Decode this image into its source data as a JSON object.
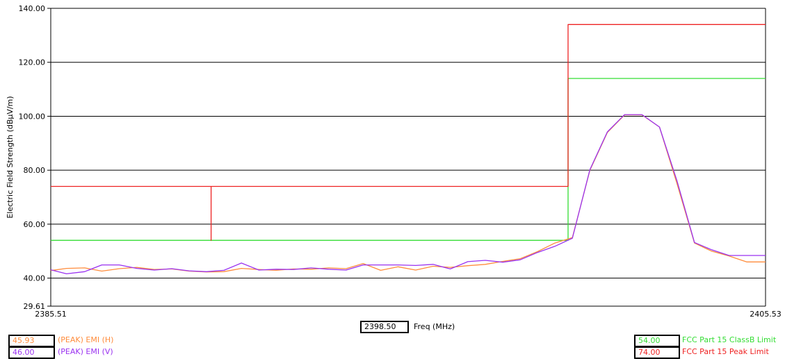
{
  "chart_data": {
    "type": "line",
    "xlabel": "Freq (MHz)",
    "ylabel": "Electric Field Strength (dBµV/m)",
    "xlim": [
      2385.51,
      2405.53
    ],
    "ylim": [
      29.61,
      140.0
    ],
    "x_tick_labels": [
      "2385.51",
      "2405.53"
    ],
    "y_ticks": [
      {
        "value": 140.0,
        "label": "140.00"
      },
      {
        "value": 120.0,
        "label": "120.00"
      },
      {
        "value": 100.0,
        "label": "100.00"
      },
      {
        "value": 80.0,
        "label": "80.00"
      },
      {
        "value": 60.0,
        "label": "60.00"
      },
      {
        "value": 40.0,
        "label": "40.00"
      },
      {
        "value": 29.61,
        "label": "29.61"
      }
    ],
    "gridlines_y": [
      140,
      120,
      100,
      80,
      60,
      40
    ],
    "grid": true,
    "series": [
      {
        "name": "(PEAK) EMI (H)",
        "color": "#ff8c3c",
        "x": [
          2385.51,
          2385.95,
          2386.46,
          2386.94,
          2387.43,
          2387.92,
          2388.41,
          2388.9,
          2389.38,
          2389.87,
          2390.36,
          2390.85,
          2391.34,
          2391.82,
          2392.31,
          2392.8,
          2393.29,
          2393.78,
          2394.26,
          2394.75,
          2395.24,
          2395.73,
          2396.22,
          2396.7,
          2397.19,
          2397.68,
          2398.17,
          2398.66,
          2399.14,
          2399.63,
          2400.12,
          2400.61,
          2401.1,
          2401.58,
          2402.07,
          2402.56,
          2403.05,
          2403.54,
          2404.02,
          2404.51,
          2405.0,
          2405.53
        ],
        "y": [
          42.8,
          43.6,
          43.8,
          42.6,
          43.5,
          44.0,
          43.2,
          43.4,
          42.6,
          42.3,
          42.4,
          43.6,
          43.2,
          42.9,
          43.4,
          43.3,
          43.8,
          43.5,
          45.4,
          42.9,
          44.2,
          43.0,
          44.4,
          44.0,
          44.6,
          45.1,
          46.2,
          47.2,
          49.8,
          53.0,
          55.0,
          80.0,
          94.0,
          100.5,
          100.5,
          96.0,
          75.0,
          53.0,
          50.0,
          48.2,
          46.0,
          46.0
        ]
      },
      {
        "name": "(PEAK) EMI (V)",
        "color": "#9a32f0",
        "x": [
          2385.51,
          2385.95,
          2386.46,
          2386.94,
          2387.43,
          2387.92,
          2388.41,
          2388.9,
          2389.38,
          2389.87,
          2390.36,
          2390.85,
          2391.34,
          2391.82,
          2392.31,
          2392.8,
          2393.29,
          2393.78,
          2394.26,
          2394.75,
          2395.24,
          2395.73,
          2396.22,
          2396.7,
          2397.19,
          2397.68,
          2398.17,
          2398.66,
          2399.14,
          2399.63,
          2400.12,
          2400.61,
          2401.1,
          2401.58,
          2402.07,
          2402.56,
          2403.05,
          2403.54,
          2404.02,
          2404.51,
          2405.0,
          2405.53
        ],
        "y": [
          43.1,
          41.6,
          42.4,
          44.9,
          44.9,
          43.6,
          43.0,
          43.5,
          42.7,
          42.4,
          42.9,
          45.6,
          43.0,
          43.3,
          43.2,
          43.8,
          43.3,
          43.0,
          44.9,
          44.9,
          44.9,
          44.7,
          45.1,
          43.4,
          46.1,
          46.6,
          45.9,
          46.8,
          49.5,
          51.8,
          54.8,
          80.2,
          94.2,
          100.6,
          100.6,
          96.0,
          76.0,
          53.2,
          50.5,
          48.4,
          48.4,
          48.4
        ]
      },
      {
        "name": "FCC Part 15 ClassB Limit",
        "color": "#33dd33",
        "x": [
          2385.51,
          2400.0,
          2400.0,
          2405.53
        ],
        "y": [
          54.0,
          54.0,
          114.0,
          114.0
        ]
      },
      {
        "name": "FCC Part 15 Peak Limit",
        "color": "#ee2222",
        "x": [
          2385.51,
          2390.0,
          2390.0,
          2390.0,
          2400.0,
          2400.0,
          2405.53
        ],
        "y": [
          74.0,
          74.0,
          54.0,
          74.0,
          74.0,
          134.0,
          134.0
        ]
      }
    ]
  },
  "cursor_readout": {
    "value": "2398.50"
  },
  "legend": [
    {
      "value": "45.93",
      "label": "(PEAK) EMI (H)",
      "color": "#ff8c3c"
    },
    {
      "value": "46.00",
      "label": "(PEAK) EMI (V)",
      "color": "#9a32f0"
    },
    {
      "value": "54.00",
      "label": "FCC Part 15 ClassB Limit",
      "color": "#33dd33"
    },
    {
      "value": "74.00",
      "label": "FCC Part 15 Peak Limit",
      "color": "#ee2222"
    }
  ]
}
